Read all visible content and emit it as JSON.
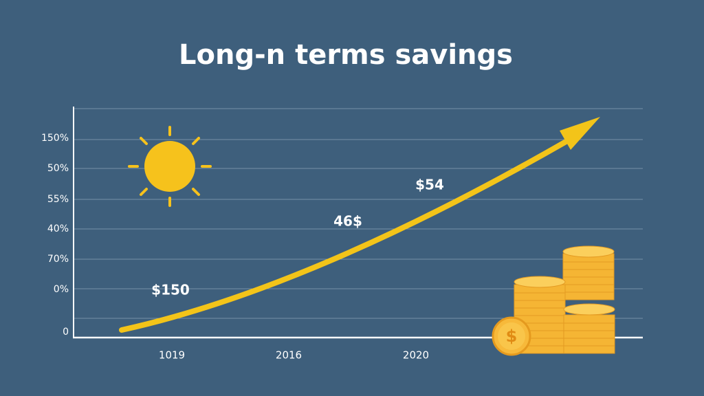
{
  "title": "Long-n terms savings",
  "y_labels": [
    "150%",
    "50%",
    "55%",
    "40%",
    "70%",
    "0%",
    "0"
  ],
  "x_labels": [
    "1019",
    "2016",
    "2020"
  ],
  "annotations": [
    "$150",
    "46$",
    "$54"
  ]
}
